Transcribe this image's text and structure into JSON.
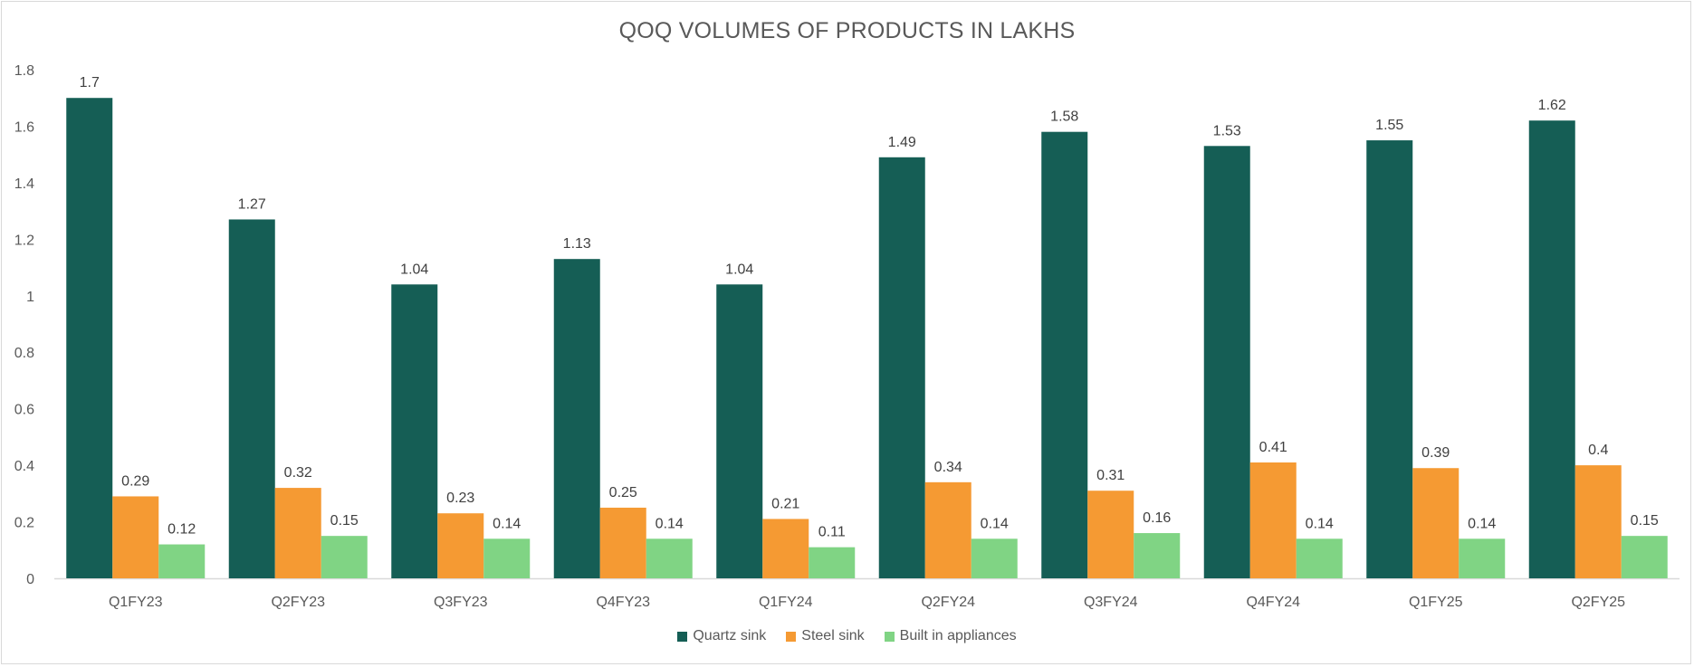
{
  "chart_data": {
    "type": "bar",
    "title": "QOQ VOLUMES OF PRODUCTS IN LAKHS",
    "categories": [
      "Q1FY23",
      "Q2FY23",
      "Q3FY23",
      "Q4FY23",
      "Q1FY24",
      "Q2FY24",
      "Q3FY24",
      "Q4FY24",
      "Q1FY25",
      "Q2FY25"
    ],
    "series": [
      {
        "name": "Quartz sink",
        "color": "#155e55",
        "values": [
          1.7,
          1.27,
          1.04,
          1.13,
          1.04,
          1.49,
          1.58,
          1.53,
          1.55,
          1.62
        ]
      },
      {
        "name": "Steel sink",
        "color": "#f59a33",
        "values": [
          0.29,
          0.32,
          0.23,
          0.25,
          0.21,
          0.34,
          0.31,
          0.41,
          0.39,
          0.4
        ]
      },
      {
        "name": "Built in appliances",
        "color": "#80d484",
        "values": [
          0.12,
          0.15,
          0.14,
          0.14,
          0.11,
          0.14,
          0.16,
          0.14,
          0.14,
          0.15
        ]
      }
    ],
    "yticks": [
      "0",
      "0.2",
      "0.4",
      "0.6",
      "0.8",
      "1",
      "1.2",
      "1.4",
      "1.6",
      "1.8"
    ],
    "ylim": [
      0,
      1.8
    ],
    "grid": false,
    "legend_position": "bottom"
  }
}
